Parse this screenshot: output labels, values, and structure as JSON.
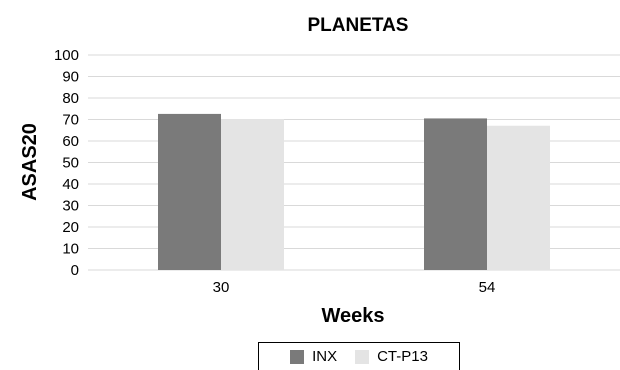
{
  "chart_data": {
    "type": "bar",
    "title": "PLANETAS",
    "xlabel": "Weeks",
    "ylabel": "ASAS20",
    "categories": [
      "30",
      "54"
    ],
    "series": [
      {
        "name": "INX",
        "values": [
          72.6,
          70.5
        ],
        "color": "#7a7a7a"
      },
      {
        "name": "CT-P13",
        "values": [
          70.2,
          67.1
        ],
        "color": "#e4e4e4"
      }
    ],
    "ylim": [
      0,
      100
    ],
    "yticks": [
      "0",
      "10",
      "20",
      "30",
      "40",
      "50",
      "60",
      "70",
      "80",
      "90",
      "100"
    ],
    "grid": true,
    "legend_position": "bottom"
  }
}
